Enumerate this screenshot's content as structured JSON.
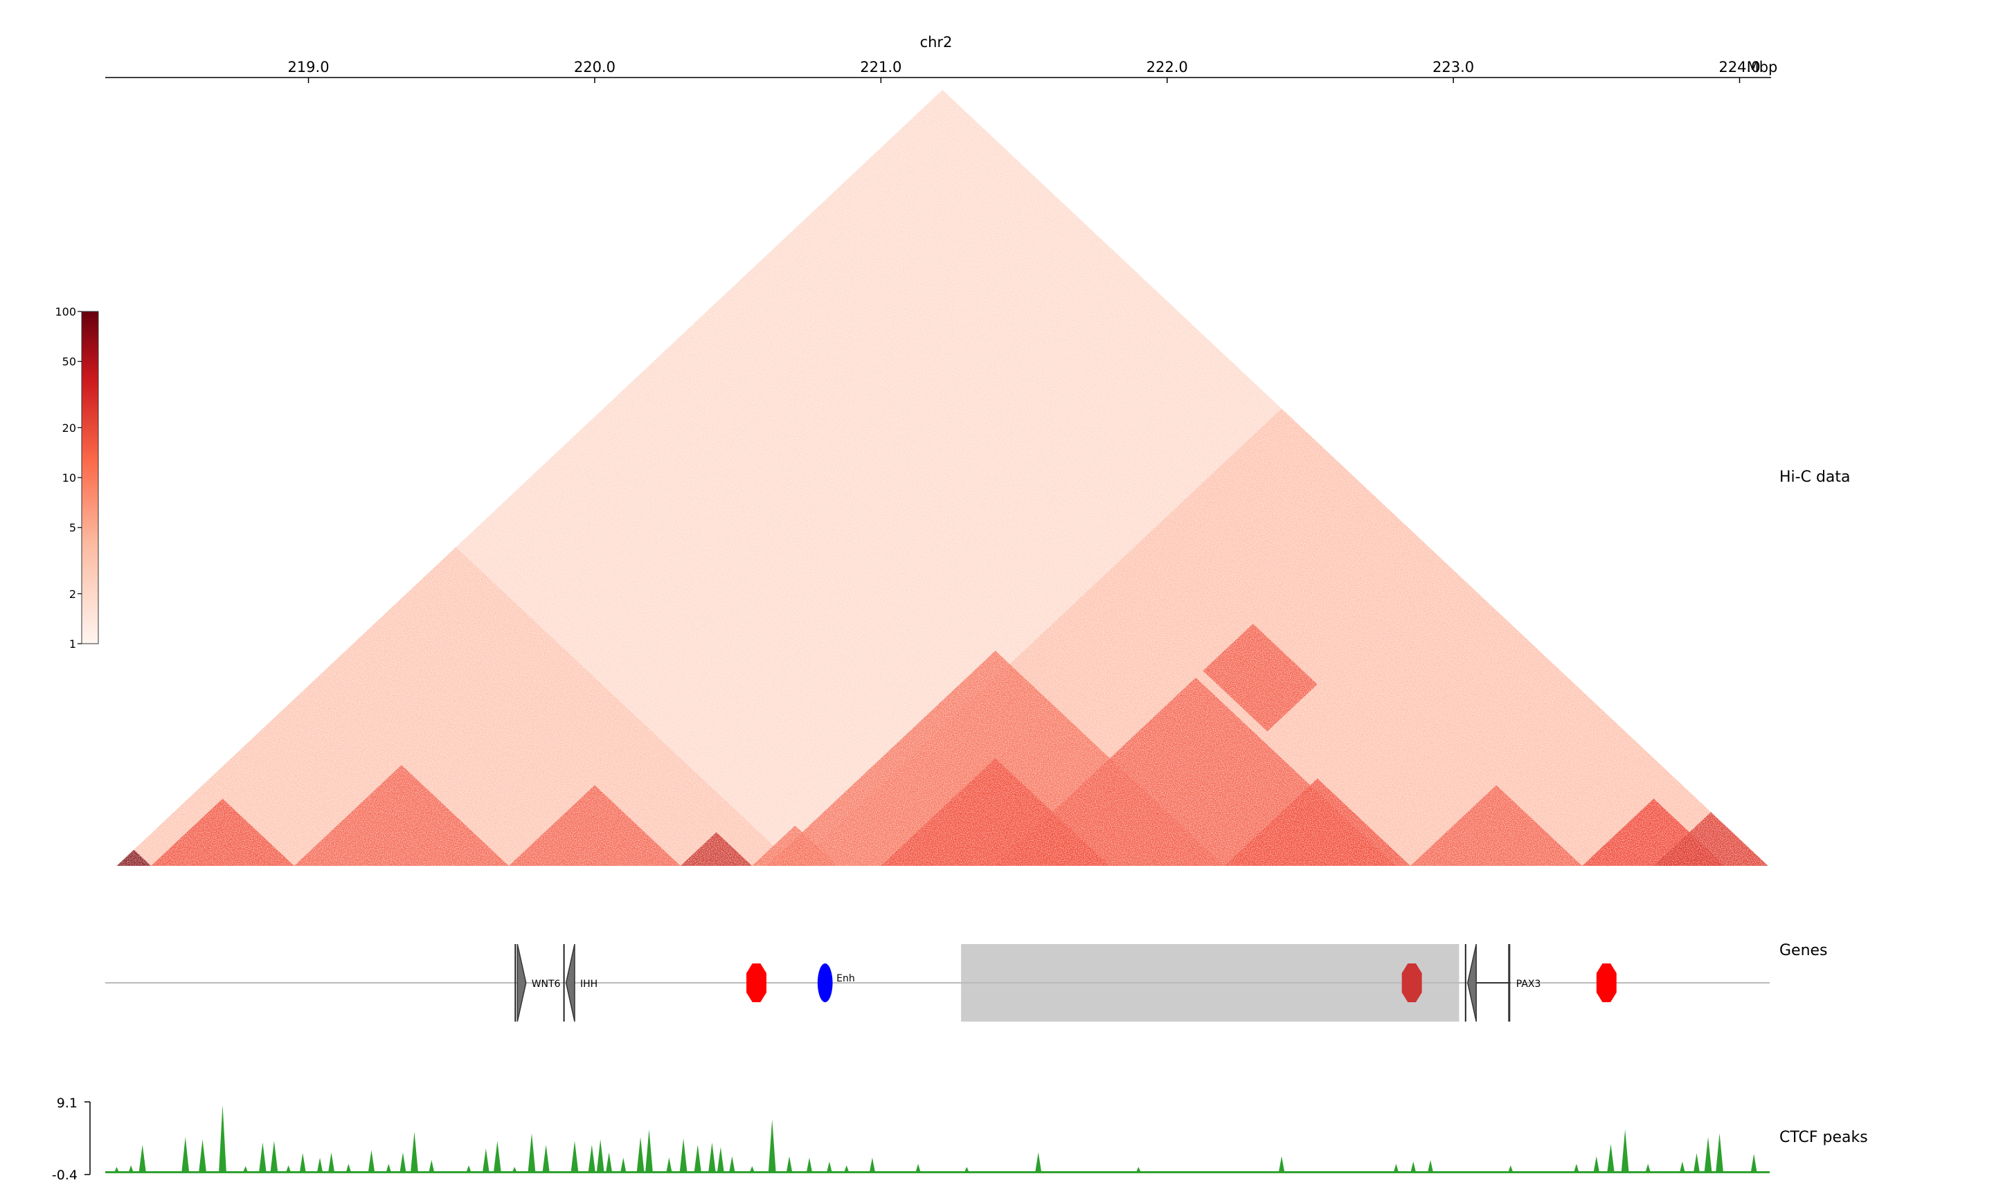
{
  "chart_data": {
    "type": "heatmap",
    "title": "chr2",
    "x_axis": {
      "unit_label": "Mbp",
      "range": [
        218.29,
        224.11
      ],
      "ticks": [
        219.0,
        220.0,
        221.0,
        222.0,
        223.0,
        224.0
      ],
      "tick_labels": [
        "219.0",
        "220.0",
        "221.0",
        "222.0",
        "223.0",
        "224.0"
      ]
    },
    "tracks": {
      "hic": {
        "label": "Hi-C data",
        "colorbar": {
          "scale": "log",
          "ticks": [
            1,
            2,
            5,
            10,
            20,
            50,
            100
          ],
          "tick_labels": [
            "1",
            "2",
            "5",
            "10",
            "20",
            "50",
            "100"
          ],
          "color_low": "#fff5f0",
          "color_mid": "#fb6a4a",
          "color_high": "#67000d"
        },
        "domains": [
          {
            "start": 218.33,
            "end": 218.45,
            "intensity": 0.95
          },
          {
            "start": 218.45,
            "end": 218.95,
            "intensity": 0.6
          },
          {
            "start": 218.95,
            "end": 219.7,
            "intensity": 0.55
          },
          {
            "start": 219.7,
            "end": 220.3,
            "intensity": 0.55
          },
          {
            "start": 220.3,
            "end": 220.55,
            "intensity": 0.75
          },
          {
            "start": 220.55,
            "end": 220.85,
            "intensity": 0.5
          },
          {
            "start": 220.6,
            "end": 222.2,
            "intensity": 0.5
          },
          {
            "start": 221.0,
            "end": 221.8,
            "intensity": 0.6
          },
          {
            "start": 221.4,
            "end": 222.8,
            "intensity": 0.55
          },
          {
            "start": 222.2,
            "end": 222.85,
            "intensity": 0.6
          },
          {
            "start": 222.85,
            "end": 223.45,
            "intensity": 0.55
          },
          {
            "start": 223.45,
            "end": 223.95,
            "intensity": 0.65
          },
          {
            "start": 223.7,
            "end": 224.1,
            "intensity": 0.7
          },
          {
            "start": 218.33,
            "end": 220.7,
            "intensity": 0.2
          },
          {
            "start": 220.7,
            "end": 224.1,
            "intensity": 0.22
          },
          {
            "start": 218.33,
            "end": 224.1,
            "intensity": 0.12
          }
        ],
        "contact_blocks": [
          {
            "a1": 221.4,
            "a2": 221.85,
            "b1": 222.85,
            "b2": 223.2,
            "intensity": 0.55
          }
        ]
      },
      "genes": {
        "label": "Genes",
        "features": [
          {
            "name": "WNT6",
            "start": 219.73,
            "end": 219.76,
            "strand": "+",
            "color": "#707070"
          },
          {
            "name": "IHH",
            "start": 219.9,
            "end": 219.93,
            "strand": "-",
            "color": "#707070"
          },
          {
            "name": "",
            "start": 220.53,
            "end": 220.6,
            "strand": "ctcf",
            "color": "#ff0000"
          },
          {
            "name": "Enh",
            "start": 220.77,
            "end": 220.84,
            "strand": "enh",
            "color": "#0000ff"
          },
          {
            "name": "",
            "start": 222.82,
            "end": 222.89,
            "strand": "ctcf",
            "color": "#cc3333"
          },
          {
            "name": "",
            "start": 223.05,
            "end": 223.08,
            "strand": "-",
            "color": "#707070"
          },
          {
            "name": "PAX3",
            "start": 223.08,
            "end": 223.2,
            "strand": "-",
            "color": "#333333"
          },
          {
            "name": "",
            "start": 223.5,
            "end": 223.57,
            "strand": "ctcf",
            "color": "#ff0000"
          }
        ],
        "highlight": {
          "start": 221.28,
          "end": 223.02,
          "color": "#cccccc"
        }
      },
      "ctcf": {
        "label": "CTCF peaks",
        "ylim": [
          -0.4,
          9.1
        ],
        "y_tick_labels": [
          "9.1",
          "-0.4"
        ],
        "color": "#2ca02c",
        "peaks": [
          [
            218.33,
            0.6
          ],
          [
            218.38,
            0.8
          ],
          [
            218.42,
            3.5
          ],
          [
            218.57,
            4.5
          ],
          [
            218.63,
            4.2
          ],
          [
            218.7,
            8.7
          ],
          [
            218.78,
            0.7
          ],
          [
            218.84,
            3.8
          ],
          [
            218.88,
            4.0
          ],
          [
            218.93,
            0.8
          ],
          [
            218.98,
            2.4
          ],
          [
            219.04,
            1.8
          ],
          [
            219.08,
            2.5
          ],
          [
            219.14,
            1.0
          ],
          [
            219.22,
            2.8
          ],
          [
            219.28,
            1.0
          ],
          [
            219.33,
            2.5
          ],
          [
            219.37,
            5.2
          ],
          [
            219.43,
            1.5
          ],
          [
            219.56,
            0.8
          ],
          [
            219.62,
            3.0
          ],
          [
            219.66,
            4.0
          ],
          [
            219.72,
            0.6
          ],
          [
            219.78,
            5.0
          ],
          [
            219.83,
            3.5
          ],
          [
            219.93,
            4.0
          ],
          [
            219.99,
            3.5
          ],
          [
            220.02,
            4.2
          ],
          [
            220.05,
            2.5
          ],
          [
            220.1,
            1.8
          ],
          [
            220.16,
            4.5
          ],
          [
            220.19,
            5.5
          ],
          [
            220.26,
            1.8
          ],
          [
            220.31,
            4.3
          ],
          [
            220.36,
            3.5
          ],
          [
            220.41,
            3.8
          ],
          [
            220.44,
            3.2
          ],
          [
            220.48,
            2.0
          ],
          [
            220.55,
            0.7
          ],
          [
            220.62,
            6.8
          ],
          [
            220.68,
            2.0
          ],
          [
            220.75,
            1.8
          ],
          [
            220.82,
            1.3
          ],
          [
            220.88,
            0.8
          ],
          [
            220.97,
            1.8
          ],
          [
            221.13,
            1.0
          ],
          [
            221.3,
            0.6
          ],
          [
            221.55,
            2.5
          ],
          [
            221.9,
            0.6
          ],
          [
            222.4,
            2.0
          ],
          [
            222.8,
            1.0
          ],
          [
            222.86,
            1.3
          ],
          [
            222.92,
            1.5
          ],
          [
            223.2,
            0.8
          ],
          [
            223.43,
            1.0
          ],
          [
            223.5,
            2.0
          ],
          [
            223.55,
            3.6
          ],
          [
            223.6,
            5.5
          ],
          [
            223.68,
            1.0
          ],
          [
            223.8,
            1.3
          ],
          [
            223.85,
            2.4
          ],
          [
            223.89,
            4.5
          ],
          [
            223.93,
            5.0
          ],
          [
            224.05,
            2.3
          ]
        ]
      }
    }
  }
}
